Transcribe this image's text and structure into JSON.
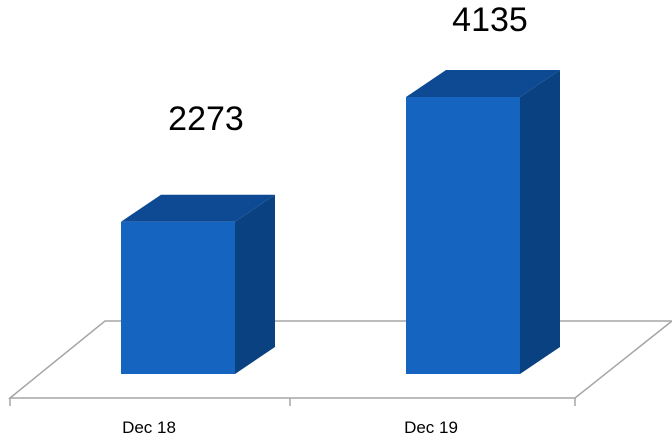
{
  "chart_data": {
    "type": "bar",
    "style": "3d-column",
    "categories": [
      "Dec 18",
      "Dec 19"
    ],
    "values": [
      2273,
      4135
    ],
    "data_labels": [
      "2273",
      "4135"
    ],
    "title": "",
    "xlabel": "",
    "ylabel": "",
    "ylim": [
      0,
      4135
    ],
    "grid": false,
    "legend": "none",
    "colors": {
      "bar_front": "#1565C0",
      "bar_top": "#0D4A93",
      "bar_side": "#0A4180",
      "floor_stroke": "#A6A6A6",
      "floor_fill": "#ffffff",
      "label_text": "#000000"
    }
  }
}
